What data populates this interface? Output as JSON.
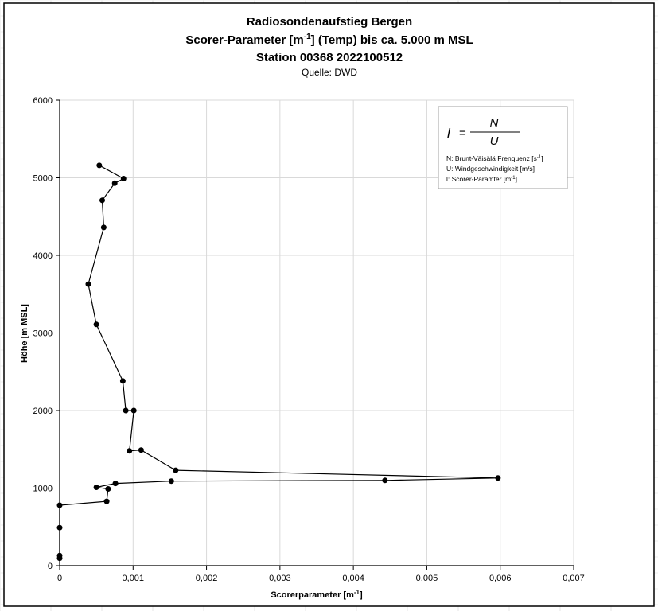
{
  "chart_data": {
    "type": "scatter",
    "title_line1": "Radiosondenaufstieg Bergen",
    "title_line2_prefix": "Scorer-Parameter [m",
    "title_line2_sup": "-1",
    "title_line2_suffix": "] (Temp) bis ca. 5.000 m MSL",
    "title_line3": "Station 00368 2022100512",
    "subtitle": "Quelle: DWD",
    "xlabel_prefix": "Scorerparameter [m",
    "xlabel_sup": "-1",
    "xlabel_suffix": "]",
    "ylabel": "Höhe [m MSL]",
    "xlim": [
      0,
      0.007
    ],
    "ylim": [
      0,
      6000
    ],
    "x_ticks": [
      0,
      0.001,
      0.002,
      0.003,
      0.004,
      0.005,
      0.006,
      0.007
    ],
    "x_tick_labels": [
      "0",
      "0,001",
      "0,002",
      "0,003",
      "0,004",
      "0,005",
      "0,006",
      "0,007"
    ],
    "y_ticks": [
      0,
      1000,
      2000,
      3000,
      4000,
      5000,
      6000
    ],
    "y_tick_labels": [
      "0",
      "1000",
      "2000",
      "3000",
      "4000",
      "5000",
      "6000"
    ],
    "grid": true,
    "connected": true,
    "legend_box": {
      "placement": "top-right",
      "formula_lhs": "l",
      "formula_eq": "=",
      "formula_num": "N",
      "formula_den": "U",
      "lines": [
        {
          "text": "N: Brunt-Väisälä Frenquenz [s",
          "sup": "-1",
          "tail": "]"
        },
        {
          "text": "U: Windgeschwindigkeit [m/s]",
          "sup": "",
          "tail": ""
        },
        {
          "text": "l: Scorer-Paramter [m",
          "sup": "-1",
          "tail": "]"
        }
      ]
    },
    "points": [
      {
        "x": 0.0,
        "y": 95
      },
      {
        "x": 0.0,
        "y": 130
      },
      {
        "x": 0.0,
        "y": 490
      },
      {
        "x": 0.0,
        "y": 780
      },
      {
        "x": 0.00064,
        "y": 830
      },
      {
        "x": 0.00066,
        "y": 990
      },
      {
        "x": 0.0005,
        "y": 1010
      },
      {
        "x": 0.00076,
        "y": 1060
      },
      {
        "x": 0.00152,
        "y": 1090
      },
      {
        "x": 0.00443,
        "y": 1100
      },
      {
        "x": 0.00597,
        "y": 1130
      },
      {
        "x": 0.00158,
        "y": 1230
      },
      {
        "x": 0.00111,
        "y": 1490
      },
      {
        "x": 0.00095,
        "y": 1480
      },
      {
        "x": 0.00101,
        "y": 2000
      },
      {
        "x": 0.0009,
        "y": 2000
      },
      {
        "x": 0.00086,
        "y": 2380
      },
      {
        "x": 0.0005,
        "y": 3110
      },
      {
        "x": 0.00039,
        "y": 3630
      },
      {
        "x": 0.0006,
        "y": 4360
      },
      {
        "x": 0.00058,
        "y": 4710
      },
      {
        "x": 0.00075,
        "y": 4930
      },
      {
        "x": 0.00087,
        "y": 4990
      },
      {
        "x": 0.00054,
        "y": 5160
      }
    ]
  }
}
